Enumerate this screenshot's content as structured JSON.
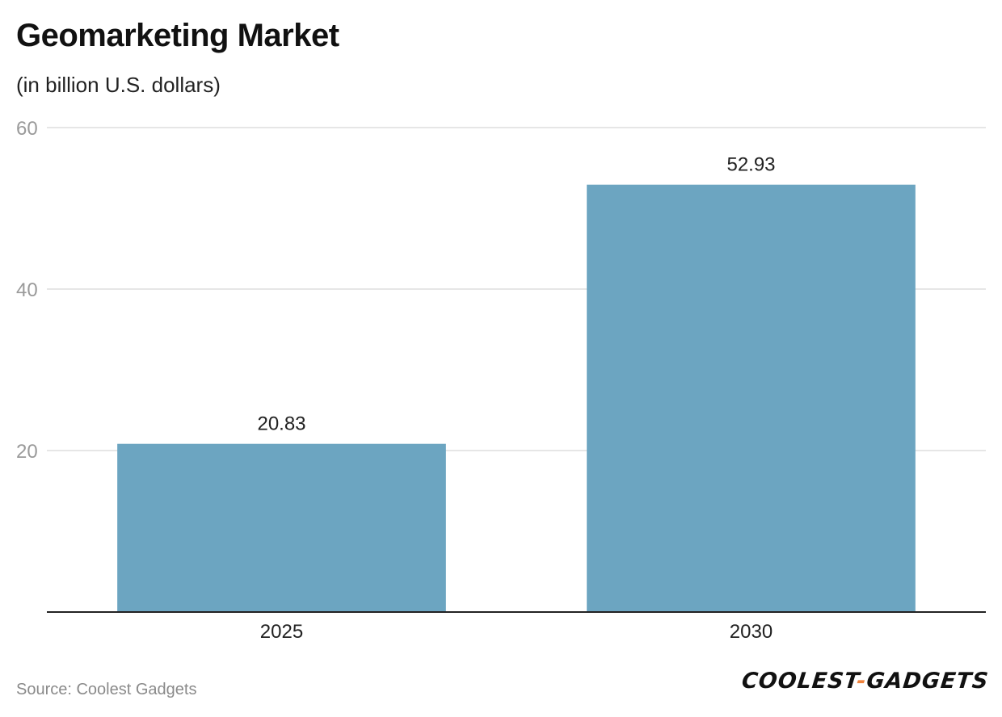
{
  "chart_data": {
    "type": "bar",
    "title": "Geomarketing Market",
    "subtitle": "(in billion U.S. dollars)",
    "categories": [
      "2025",
      "2030"
    ],
    "values": [
      20.83,
      52.93
    ],
    "value_labels": [
      "20.83",
      "52.93"
    ],
    "ylim": [
      0,
      60
    ],
    "yticks": [
      20,
      40,
      60
    ],
    "xlabel": "",
    "ylabel": "",
    "grid": true,
    "bar_color": "#6ca5c1"
  },
  "footer": {
    "source": "Source: Coolest Gadgets",
    "logo_part1": "COOLEST",
    "logo_dash": "-",
    "logo_part2": "GADGETS"
  }
}
